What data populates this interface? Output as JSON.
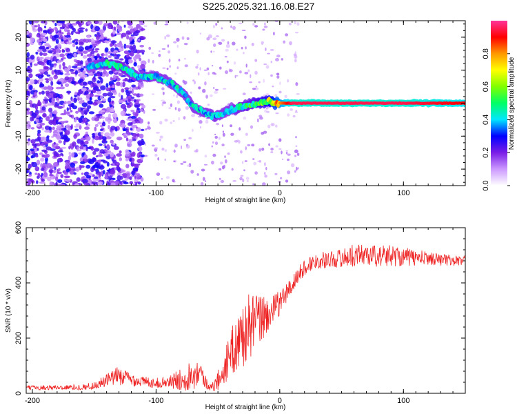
{
  "title": "S225.2025.321.16.08.E27",
  "chart_data": [
    {
      "type": "heatmap",
      "title": "S225.2025.321.16.08.E27",
      "xlabel": "Height of straight line (km)",
      "ylabel": "Frequency (Hz)",
      "xlim": [
        -205,
        150
      ],
      "ylim": [
        -25,
        25
      ],
      "x_ticks": [
        -200,
        -100,
        0,
        100
      ],
      "y_ticks": [
        -20,
        -10,
        0,
        10,
        20
      ],
      "colorbar": {
        "label": "Normalized spectral amplitude",
        "range": [
          0,
          1
        ],
        "ticks": [
          "0.0",
          "0.2",
          "0.4",
          "0.6",
          "0.8"
        ],
        "colors": [
          "#ffffff",
          "#cc99ff",
          "#7a1ee6",
          "#0000ff",
          "#00e6ff",
          "#00ff66",
          "#80ff00",
          "#ffff00",
          "#ff9900",
          "#ff0000",
          "#ff3399"
        ]
      },
      "ridge": [
        {
          "x": -155,
          "y": 11,
          "a": 0.35
        },
        {
          "x": -140,
          "y": 12,
          "a": 0.45
        },
        {
          "x": -128,
          "y": 11,
          "a": 0.45
        },
        {
          "x": -115,
          "y": 8,
          "a": 0.4
        },
        {
          "x": -100,
          "y": 8,
          "a": 0.4
        },
        {
          "x": -88,
          "y": 6,
          "a": 0.4
        },
        {
          "x": -78,
          "y": 3,
          "a": 0.4
        },
        {
          "x": -70,
          "y": -1,
          "a": 0.4
        },
        {
          "x": -60,
          "y": -3,
          "a": 0.4
        },
        {
          "x": -52,
          "y": -4,
          "a": 0.4
        },
        {
          "x": -40,
          "y": -2,
          "a": 0.4
        },
        {
          "x": -30,
          "y": -1,
          "a": 0.45
        },
        {
          "x": -20,
          "y": 0,
          "a": 0.5
        },
        {
          "x": -10,
          "y": 0.5,
          "a": 0.6
        },
        {
          "x": 0,
          "y": 0,
          "a": 0.8
        },
        {
          "x": 10,
          "y": 0,
          "a": 0.95
        },
        {
          "x": 50,
          "y": 0,
          "a": 0.95
        },
        {
          "x": 100,
          "y": 0,
          "a": 0.95
        },
        {
          "x": 150,
          "y": 0,
          "a": 0.9
        }
      ]
    },
    {
      "type": "line",
      "xlabel": "Height of straight line (km)",
      "ylabel": "SNR (10 * v/v)",
      "xlim": [
        -205,
        150
      ],
      "ylim": [
        0,
        600
      ],
      "x_ticks": [
        -200,
        -100,
        0,
        100
      ],
      "y_ticks": [
        0,
        200,
        400,
        600
      ],
      "color": "#ee2222",
      "series": [
        {
          "name": "SNR",
          "x": [
            -205,
            -160,
            -150,
            -140,
            -130,
            -120,
            -110,
            -100,
            -90,
            -80,
            -70,
            -65,
            -60,
            -55,
            -50,
            -45,
            -40,
            -35,
            -30,
            -25,
            -20,
            -15,
            -10,
            -5,
            0,
            5,
            10,
            15,
            20,
            25,
            30,
            40,
            50,
            60,
            70,
            80,
            90,
            100,
            110,
            120,
            130,
            140,
            150
          ],
          "values": [
            20,
            22,
            28,
            45,
            65,
            50,
            42,
            38,
            40,
            50,
            70,
            85,
            40,
            20,
            45,
            90,
            140,
            180,
            210,
            240,
            255,
            270,
            285,
            300,
            330,
            360,
            390,
            430,
            455,
            470,
            480,
            485,
            490,
            500,
            505,
            495,
            500,
            495,
            490,
            490,
            485,
            480,
            480
          ],
          "spread": [
            8,
            10,
            14,
            25,
            35,
            25,
            20,
            18,
            22,
            40,
            60,
            40,
            25,
            12,
            40,
            60,
            80,
            110,
            120,
            120,
            110,
            90,
            70,
            55,
            45,
            40,
            35,
            30,
            30,
            30,
            30,
            30,
            35,
            40,
            40,
            40,
            40,
            35,
            30,
            25,
            22,
            20,
            20
          ]
        }
      ]
    }
  ]
}
